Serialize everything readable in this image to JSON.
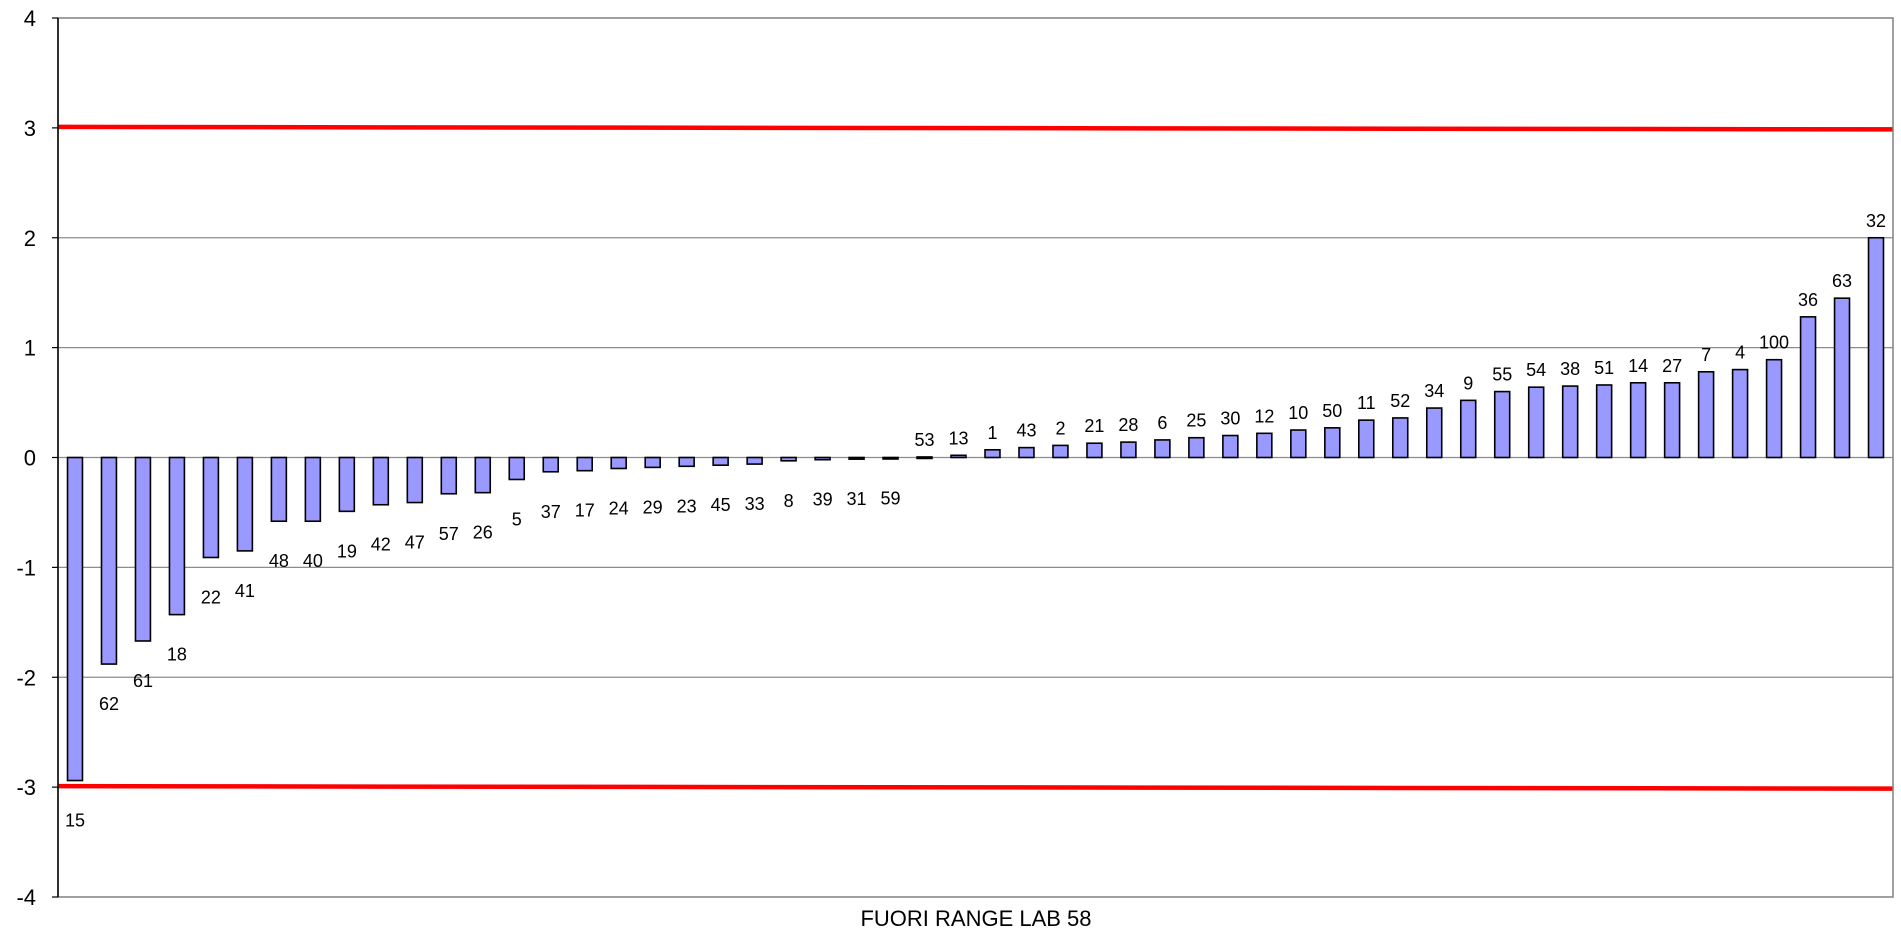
{
  "chart_data": {
    "type": "bar",
    "xlabel": "FUORI RANGE LAB 58",
    "ylim": [
      -4,
      4
    ],
    "yticks": [
      -4,
      -3,
      -2,
      -1,
      0,
      1,
      2,
      3,
      4
    ],
    "grid": "horizontal",
    "bar_color": "#9999ff",
    "bar_edge_color": "#000000",
    "limit_color": "#ff0000",
    "limits": [
      3,
      -3
    ],
    "categories": [
      "15",
      "62",
      "61",
      "18",
      "22",
      "41",
      "48",
      "40",
      "19",
      "42",
      "47",
      "57",
      "26",
      "5",
      "37",
      "17",
      "24",
      "29",
      "23",
      "45",
      "33",
      "8",
      "39",
      "31",
      "59",
      "53",
      "13",
      "1",
      "43",
      "2",
      "21",
      "28",
      "6",
      "25",
      "30",
      "12",
      "10",
      "50",
      "11",
      "52",
      "34",
      "9",
      "55",
      "54",
      "38",
      "51",
      "14",
      "27",
      "7",
      "4",
      "100",
      "36",
      "63",
      "32"
    ],
    "values": [
      -2.94,
      -1.88,
      -1.67,
      -1.43,
      -0.91,
      -0.85,
      -0.58,
      -0.58,
      -0.49,
      -0.43,
      -0.41,
      -0.33,
      -0.32,
      -0.2,
      -0.13,
      -0.12,
      -0.1,
      -0.09,
      -0.08,
      -0.07,
      -0.06,
      -0.03,
      -0.02,
      -0.015,
      -0.01,
      0.005,
      0.02,
      0.07,
      0.09,
      0.11,
      0.13,
      0.14,
      0.16,
      0.18,
      0.2,
      0.22,
      0.25,
      0.27,
      0.34,
      0.36,
      0.45,
      0.52,
      0.6,
      0.64,
      0.65,
      0.66,
      0.68,
      0.68,
      0.78,
      0.8,
      0.89,
      1.28,
      1.45,
      2.0
    ]
  }
}
